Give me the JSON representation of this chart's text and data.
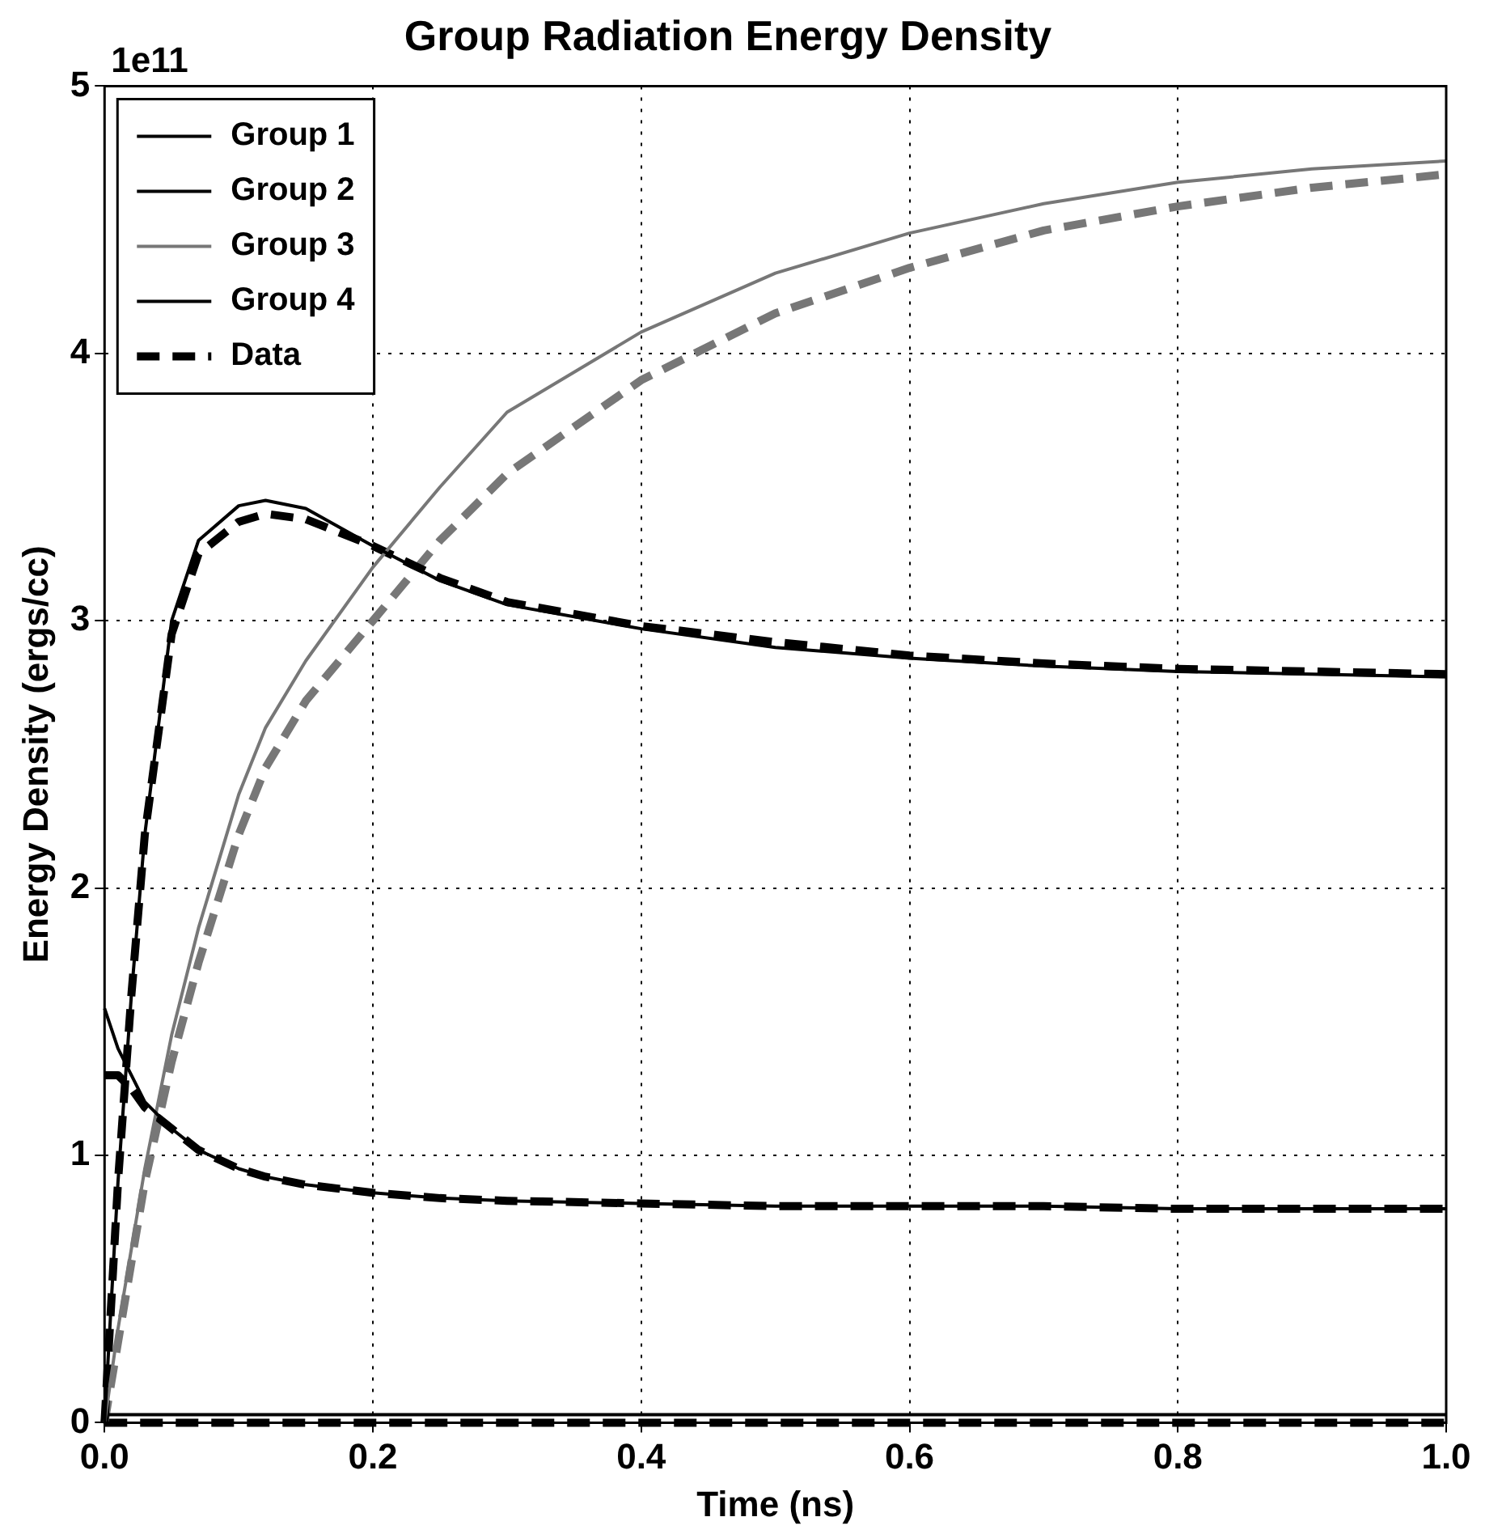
{
  "chart_data": {
    "type": "line",
    "title": "Group Radiation Energy Density",
    "xlabel": "Time (ns)",
    "ylabel": "Energy Density (ergs/cc)",
    "annotations": [
      "1e11"
    ],
    "x": [
      0,
      0.01,
      0.02,
      0.03,
      0.05,
      0.07,
      0.1,
      0.12,
      0.15,
      0.2,
      0.25,
      0.3,
      0.4,
      0.5,
      0.6,
      0.7,
      0.8,
      0.9,
      1.0
    ],
    "series": [
      {
        "name": "Group 1",
        "color": "#000000",
        "values": [
          1.55,
          1.4,
          1.3,
          1.2,
          1.1,
          1.02,
          0.95,
          0.92,
          0.89,
          0.86,
          0.84,
          0.83,
          0.82,
          0.81,
          0.81,
          0.81,
          0.8,
          0.8,
          0.8
        ]
      },
      {
        "name": "Group 2",
        "color": "#000000",
        "values": [
          0,
          0.9,
          1.6,
          2.2,
          3.0,
          3.3,
          3.43,
          3.45,
          3.42,
          3.28,
          3.15,
          3.06,
          2.97,
          2.9,
          2.86,
          2.83,
          2.81,
          2.8,
          2.79
        ]
      },
      {
        "name": "Group 3",
        "color": "#777777",
        "values": [
          0,
          0.35,
          0.65,
          0.95,
          1.45,
          1.85,
          2.35,
          2.6,
          2.85,
          3.2,
          3.5,
          3.78,
          4.08,
          4.3,
          4.45,
          4.56,
          4.64,
          4.69,
          4.72
        ]
      },
      {
        "name": "Group 4",
        "color": "#000000",
        "values": [
          0.03,
          0.03,
          0.03,
          0.03,
          0.03,
          0.03,
          0.03,
          0.03,
          0.03,
          0.03,
          0.03,
          0.03,
          0.03,
          0.03,
          0.03,
          0.03,
          0.03,
          0.03,
          0.03
        ]
      },
      {
        "name": "Data",
        "color": "#000000",
        "line_style": "dashed",
        "values": [
          1.3,
          1.3,
          1.25,
          1.18,
          1.1,
          1.02,
          0.95,
          0.92,
          0.89,
          0.86,
          0.84,
          0.83,
          0.82,
          0.81,
          0.81,
          0.81,
          0.8,
          0.8,
          0.8
        ]
      },
      {
        "color": "#000000",
        "line_style": "dashed",
        "values": [
          0,
          0.9,
          1.6,
          2.2,
          2.95,
          3.25,
          3.37,
          3.4,
          3.38,
          3.28,
          3.16,
          3.07,
          2.98,
          2.92,
          2.87,
          2.84,
          2.82,
          2.81,
          2.8
        ]
      },
      {
        "color": "#777777",
        "line_style": "dashed",
        "values": [
          0,
          0.3,
          0.6,
          0.9,
          1.35,
          1.72,
          2.2,
          2.45,
          2.7,
          3.0,
          3.3,
          3.55,
          3.9,
          4.15,
          4.32,
          4.46,
          4.55,
          4.62,
          4.67
        ]
      },
      {
        "color": "#000000",
        "line_style": "dashed",
        "values": [
          0,
          0,
          0,
          0,
          0,
          0,
          0,
          0,
          0,
          0,
          0,
          0,
          0,
          0,
          0,
          0,
          0,
          0,
          0
        ]
      }
    ],
    "xlim": [
      0,
      1
    ],
    "xticks": [
      {
        "value": 0,
        "label": "0.0"
      },
      {
        "value": 0.2,
        "label": "0.2"
      },
      {
        "value": 0.4,
        "label": "0.4"
      },
      {
        "value": 0.6,
        "label": "0.6"
      },
      {
        "value": 0.8,
        "label": "0.8"
      },
      {
        "value": 1,
        "label": "1.0"
      }
    ],
    "ylim": [
      0,
      5
    ],
    "yticks": [
      0,
      1,
      2,
      3,
      4,
      5
    ],
    "grid": true,
    "legend": "top left",
    "marker": "none",
    "line_style": "solid"
  }
}
